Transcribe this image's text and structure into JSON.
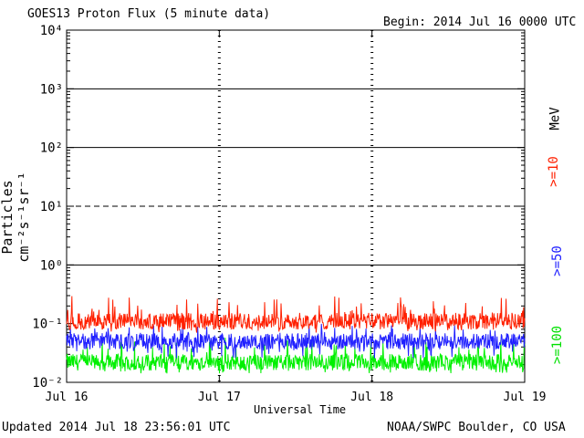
{
  "header": {
    "title": "GOES13 Proton Flux (5 minute data)",
    "begin": "Begin: 2014 Jul 16 0000 UTC"
  },
  "footer": {
    "updated": "Updated 2014 Jul 18 23:56:01 UTC",
    "credit": "NOAA/SWPC Boulder, CO USA"
  },
  "colors": {
    "gte10": "#ff2000",
    "gte50": "#2020ff",
    "gte100": "#00f000"
  },
  "chart_data": {
    "type": "line",
    "title": "GOES13 Proton Flux (5 minute data)",
    "xlabel": "Universal Time",
    "ylabel": "Particles cm⁻²s⁻¹sr⁻¹",
    "yscale": "log",
    "ylim": [
      0.01,
      10000
    ],
    "x_ticks": [
      "Jul 16",
      "Jul 17",
      "Jul 18",
      "Jul 19"
    ],
    "y_ticks": [
      "10⁻²",
      "10⁻¹",
      "10⁰",
      "10¹",
      "10²",
      "10³",
      "10⁴"
    ],
    "reference_lines": [
      {
        "value": 10,
        "style": "dashed"
      },
      {
        "value": 1,
        "style": "solid"
      },
      {
        "value": 100,
        "style": "solid"
      },
      {
        "value": 1000,
        "style": "solid"
      }
    ],
    "unit_label": "MeV",
    "series": [
      {
        "name": ">=10",
        "typical": 0.11,
        "range": [
          0.07,
          0.3
        ]
      },
      {
        "name": ">=50",
        "typical": 0.05,
        "range": [
          0.025,
          0.1
        ]
      },
      {
        "name": ">=100",
        "typical": 0.022,
        "range": [
          0.014,
          0.06
        ]
      }
    ]
  }
}
